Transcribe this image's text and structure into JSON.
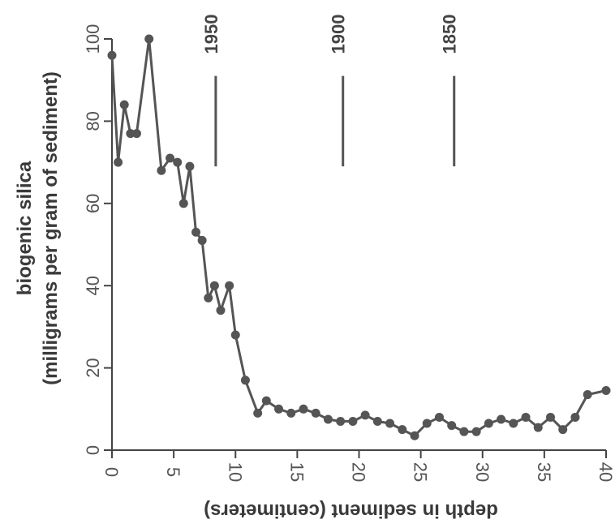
{
  "chart_data": {
    "type": "line",
    "xlabel": "depth in sediment (centimeters)",
    "ylabel_line1": "biogenic silica",
    "ylabel_line2": "(milligrams per gram of sediment)",
    "xlim": [
      0,
      40
    ],
    "ylim": [
      0,
      100
    ],
    "x_ticks": [
      0,
      5,
      10,
      15,
      20,
      25,
      30,
      35,
      40
    ],
    "y_ticks": [
      0,
      20,
      40,
      60,
      80,
      100
    ],
    "grid": false,
    "legend": "none",
    "series": [
      {
        "x": [
          0,
          0.5,
          1,
          1.5,
          2,
          3,
          4,
          4.7,
          5.3,
          5.8,
          6.3,
          6.8,
          7.3,
          7.8,
          8.3,
          8.8,
          9.5,
          10,
          10.8,
          11.8,
          12.5,
          13.5,
          14.5,
          15.5,
          16.5,
          17.5,
          18.5,
          19.5,
          20.5,
          21.5,
          22.5,
          23.5,
          24.5,
          25.5,
          26.5,
          27.5,
          28.5,
          29.5,
          30.5,
          31.5,
          32.5,
          33.5,
          34.5,
          35.5,
          36.5,
          37.5,
          38.5,
          40
        ],
        "y": [
          96,
          70,
          84,
          77,
          77,
          100,
          68,
          71,
          70,
          60,
          69,
          53,
          51,
          37,
          40,
          34,
          40,
          28,
          17,
          9,
          12,
          10,
          9,
          10,
          9,
          7.5,
          7,
          7,
          8.5,
          7,
          6.5,
          5,
          3.5,
          6.5,
          8,
          6,
          4.5,
          4.5,
          6.5,
          7.5,
          6.5,
          8,
          5.5,
          8,
          5,
          8,
          13.5,
          14.5
        ]
      }
    ],
    "annotations": [
      {
        "label": "1950",
        "x": 8.4,
        "y_top": 91,
        "y_bottom": 69
      },
      {
        "label": "1900",
        "x": 18.7,
        "y_top": 91,
        "y_bottom": 69
      },
      {
        "label": "1850",
        "x": 27.7,
        "y_top": 91,
        "y_bottom": 69
      }
    ],
    "colors": {
      "line": "#555555",
      "text": "#3a3a3a"
    }
  }
}
